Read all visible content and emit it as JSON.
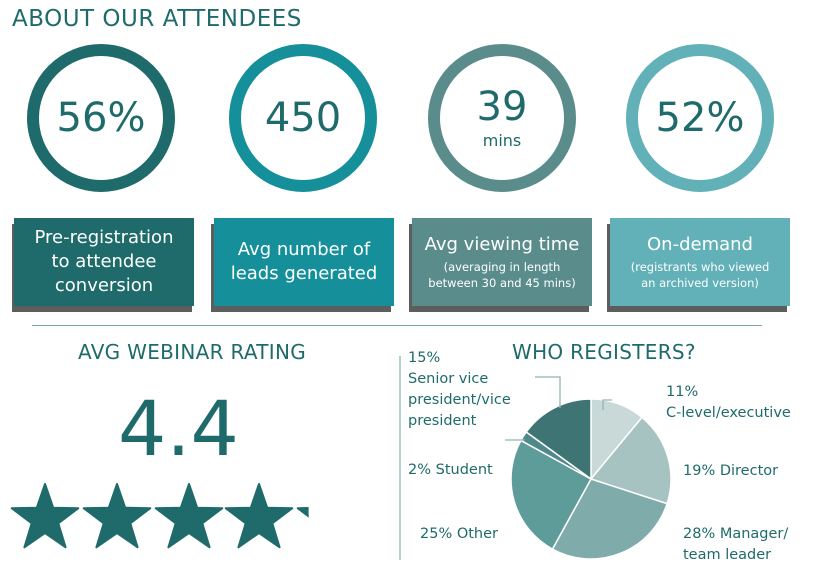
{
  "header": {
    "title": "ABOUT OUR ATTENDEES"
  },
  "stats": [
    {
      "value": "56%",
      "unit": "",
      "label": "Pre-registration\nto attendee\nconversion",
      "sub": "",
      "color": "#1f6b6b"
    },
    {
      "value": "450",
      "unit": "",
      "label": "Avg number of\nleads generated",
      "sub": "",
      "color": "#15909a"
    },
    {
      "value": "39",
      "unit": "mins",
      "label": "Avg viewing time",
      "sub": "(averaging in length\nbetween 30 and 45 mins)",
      "color": "#5b8c8c"
    },
    {
      "value": "52%",
      "unit": "",
      "label": "On-demand",
      "sub": "(registrants who viewed\nan archived version)",
      "color": "#62b1b8"
    }
  ],
  "rating_section": {
    "title": "AVG WEBINAR RATING",
    "value": "4.4",
    "stars": {
      "filled_fraction": 0.88,
      "max": 5,
      "color": "#1f6b6b"
    }
  },
  "registers_section": {
    "title": "WHO REGISTERS?"
  },
  "chart_data": {
    "type": "pie",
    "title": "WHO REGISTERS?",
    "slices": [
      {
        "label": "C-level/executive",
        "display": "11%\nC-level/executive",
        "value": 11,
        "color": "#c8d9d8"
      },
      {
        "label": "Director",
        "display": "19% Director",
        "value": 19,
        "color": "#a6c3c1"
      },
      {
        "label": "Manager/team leader",
        "display": "28% Manager/\nteam leader",
        "value": 28,
        "color": "#7fabab"
      },
      {
        "label": "Other",
        "display": "25% Other",
        "value": 25,
        "color": "#5e9c9a"
      },
      {
        "label": "Student",
        "display": "2% Student",
        "value": 2,
        "color": "#4f8989"
      },
      {
        "label": "Senior vice president/vice president",
        "display": "15%\nSenior vice\npresident/vice\npresident",
        "value": 15,
        "color": "#3e7574"
      }
    ]
  }
}
